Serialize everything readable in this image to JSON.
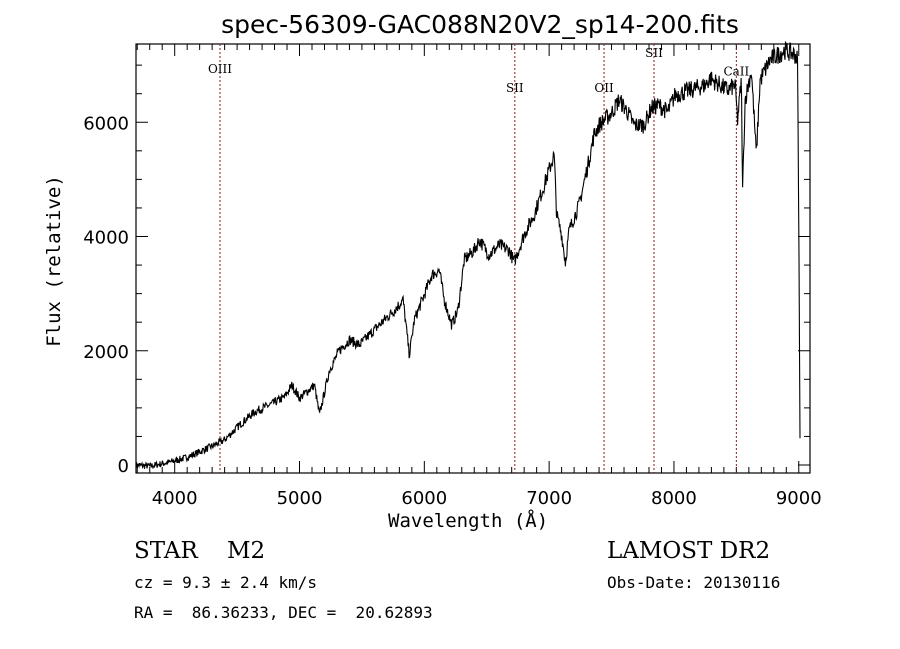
{
  "chart_data": {
    "type": "line",
    "title": "spec-56309-GAC088N20V2_sp14-200.fits",
    "xlabel": "Wavelength (Å)",
    "ylabel": "Flux (relative)",
    "xlim": [
      3690,
      9090
    ],
    "ylim": [
      -140,
      7370
    ],
    "xticks": [
      4000,
      5000,
      6000,
      7000,
      8000,
      9000
    ],
    "yticks": [
      0,
      2000,
      4000,
      6000
    ],
    "grid": false,
    "series": [
      {
        "name": "spectrum",
        "x": [
          3690,
          3800,
          3960,
          4080,
          4200,
          4320,
          4400,
          4520,
          4640,
          4760,
          4880,
          4940,
          5000,
          5120,
          5160,
          5240,
          5320,
          5400,
          5480,
          5560,
          5680,
          5760,
          5830,
          5880,
          5920,
          6000,
          6060,
          6120,
          6160,
          6220,
          6270,
          6320,
          6400,
          6440,
          6520,
          6600,
          6680,
          6720,
          6800,
          6880,
          6960,
          7040,
          7060,
          7100,
          7130,
          7160,
          7240,
          7320,
          7360,
          7400,
          7500,
          7560,
          7620,
          7680,
          7760,
          7820,
          7880,
          7950,
          8010,
          8130,
          8250,
          8290,
          8370,
          8430,
          8490,
          8510,
          8540,
          8550,
          8570,
          8620,
          8660,
          8690,
          8770,
          8890,
          8970,
          8990,
          9000,
          9010
        ],
        "y": [
          0,
          -20,
          50,
          120,
          230,
          350,
          440,
          700,
          930,
          1050,
          1190,
          1400,
          1170,
          1400,
          875,
          1660,
          2010,
          2190,
          2100,
          2280,
          2540,
          2710,
          2890,
          1925,
          2540,
          2980,
          3330,
          3410,
          2890,
          2450,
          2710,
          3590,
          3760,
          3940,
          3680,
          3850,
          3760,
          3550,
          4030,
          4380,
          4900,
          5430,
          4380,
          4030,
          3550,
          4110,
          4550,
          5340,
          5780,
          5950,
          6160,
          6390,
          6210,
          5950,
          5950,
          6250,
          6300,
          6180,
          6480,
          6560,
          6650,
          6770,
          6650,
          6560,
          6650,
          6040,
          6740,
          4810,
          6390,
          6910,
          5430,
          6740,
          7090,
          7260,
          7180,
          7090,
          4380,
          440
        ]
      }
    ],
    "lines": [
      {
        "label": "OIII",
        "x": 4363,
        "label_y": 6860
      },
      {
        "label": "SII",
        "x": 6725,
        "label_y": 6530
      },
      {
        "label": "OII",
        "x": 7440,
        "label_y": 6530
      },
      {
        "label": "SII",
        "x": 7840,
        "label_y": 7140
      },
      {
        "label": "CaII",
        "x": 8500,
        "label_y": 6820
      }
    ],
    "line_color": "#8b1a1a"
  },
  "info": {
    "object": "STAR    M2",
    "cz": "cz = 9.3 ± 2.4 km/s",
    "coords": "RA =  86.36233, DEC =  20.62893",
    "survey": "LAMOST DR2",
    "obs_date": "Obs-Date: 20130116"
  }
}
